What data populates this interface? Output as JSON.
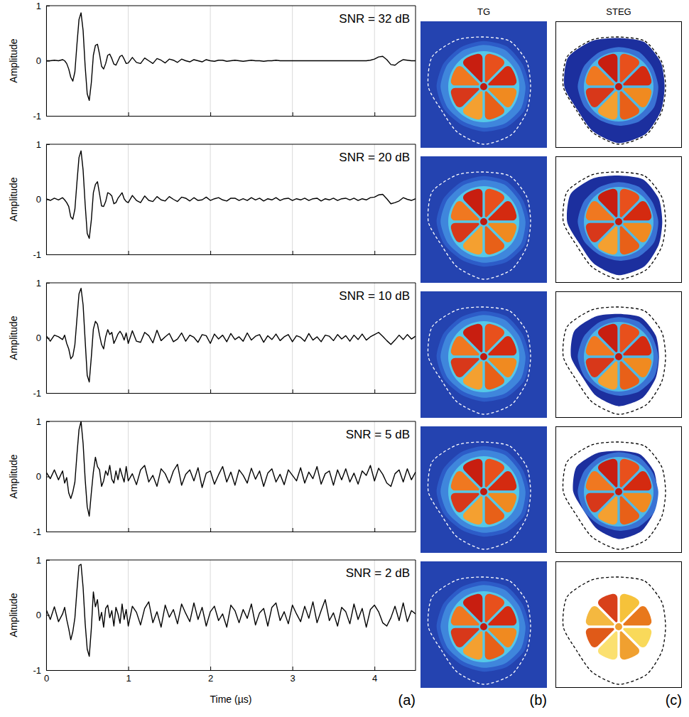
{
  "chart_data": [
    {
      "type": "line",
      "annotation": "SNR = 32 dB",
      "ylabel": "Amplitude",
      "color": "#000000",
      "grid": "x",
      "tick_labels": "y",
      "xlim": [
        0,
        4.5
      ],
      "ylim": [
        -1,
        1
      ],
      "xticks": [
        0,
        1,
        2,
        3,
        4
      ],
      "yticks": [
        -1,
        0,
        1
      ],
      "x": [
        0,
        0.05,
        0.1,
        0.15,
        0.2,
        0.225,
        0.25,
        0.275,
        0.3,
        0.325,
        0.35,
        0.375,
        0.4,
        0.425,
        0.45,
        0.475,
        0.5,
        0.525,
        0.55,
        0.575,
        0.6,
        0.625,
        0.65,
        0.675,
        0.7,
        0.725,
        0.75,
        0.775,
        0.8,
        0.825,
        0.85,
        0.875,
        0.9,
        0.925,
        0.95,
        0.975,
        1,
        1.05,
        1.1,
        1.15,
        1.2,
        1.25,
        1.3,
        1.35,
        1.4,
        1.45,
        1.5,
        1.55,
        1.6,
        1.65,
        1.7,
        1.75,
        1.8,
        1.85,
        1.9,
        1.95,
        2,
        2.05,
        2.1,
        2.15,
        2.2,
        2.25,
        2.3,
        2.35,
        2.4,
        2.45,
        2.5,
        2.55,
        2.6,
        2.65,
        2.7,
        2.75,
        2.8,
        2.85,
        2.9,
        2.95,
        3,
        3.05,
        3.1,
        3.15,
        3.2,
        3.25,
        3.3,
        3.35,
        3.4,
        3.45,
        3.5,
        3.55,
        3.6,
        3.65,
        3.7,
        3.75,
        3.8,
        3.85,
        3.9,
        3.95,
        4,
        4.05,
        4.1,
        4.15,
        4.2,
        4.25,
        4.3,
        4.35,
        4.4,
        4.45,
        4.5
      ],
      "values": [
        0,
        0,
        0.01,
        0,
        0.02,
        0,
        -0.05,
        -0.15,
        -0.3,
        -0.37,
        -0.2,
        0.3,
        0.75,
        0.87,
        0.55,
        -0.1,
        -0.6,
        -0.72,
        -0.4,
        0.1,
        0.28,
        0.3,
        0.12,
        -0.1,
        -0.15,
        -0.05,
        0.1,
        0.12,
        0.04,
        -0.06,
        -0.08,
        0,
        0.08,
        0.1,
        0.03,
        -0.05,
        -0.04,
        0.06,
        -0.03,
        -0.05,
        0.05,
        0,
        -0.05,
        0.04,
        0.01,
        -0.04,
        0.03,
        0.01,
        -0.03,
        0.03,
        0,
        -0.02,
        0.02,
        0,
        -0.02,
        0.02,
        0,
        -0.01,
        0.01,
        0.01,
        -0.01,
        0,
        0.01,
        0,
        -0.01,
        0,
        0.01,
        0,
        0,
        -0.01,
        0,
        0,
        0.01,
        0,
        0,
        0,
        0,
        0,
        0,
        0,
        0,
        0,
        0,
        0,
        0,
        0,
        0,
        0,
        0,
        0,
        0,
        0,
        0,
        0,
        0,
        0.01,
        0.03,
        0.07,
        0.08,
        0.02,
        -0.07,
        -0.08,
        -0.02,
        0.02,
        0.01,
        0,
        0
      ]
    },
    {
      "type": "line",
      "annotation": "SNR = 20 dB",
      "ylabel": "Amplitude",
      "color": "#000000",
      "grid": "x",
      "tick_labels": "y",
      "xlim": [
        0,
        4.5
      ],
      "ylim": [
        -1,
        1
      ],
      "xticks": [
        0,
        1,
        2,
        3,
        4
      ],
      "yticks": [
        -1,
        0,
        1
      ],
      "x": [
        0,
        0.05,
        0.1,
        0.15,
        0.2,
        0.225,
        0.25,
        0.275,
        0.3,
        0.325,
        0.35,
        0.375,
        0.4,
        0.425,
        0.45,
        0.475,
        0.5,
        0.525,
        0.55,
        0.575,
        0.6,
        0.625,
        0.65,
        0.675,
        0.7,
        0.725,
        0.75,
        0.775,
        0.8,
        0.825,
        0.85,
        0.875,
        0.9,
        0.925,
        0.95,
        0.975,
        1,
        1.05,
        1.1,
        1.15,
        1.2,
        1.25,
        1.3,
        1.35,
        1.4,
        1.45,
        1.5,
        1.55,
        1.6,
        1.65,
        1.7,
        1.75,
        1.8,
        1.85,
        1.9,
        1.95,
        2,
        2.05,
        2.1,
        2.15,
        2.2,
        2.25,
        2.3,
        2.35,
        2.4,
        2.45,
        2.5,
        2.55,
        2.6,
        2.65,
        2.7,
        2.75,
        2.8,
        2.85,
        2.9,
        2.95,
        3,
        3.05,
        3.1,
        3.15,
        3.2,
        3.25,
        3.3,
        3.35,
        3.4,
        3.45,
        3.5,
        3.55,
        3.6,
        3.65,
        3.7,
        3.75,
        3.8,
        3.85,
        3.9,
        3.95,
        4,
        4.05,
        4.1,
        4.15,
        4.2,
        4.25,
        4.3,
        4.35,
        4.4,
        4.45,
        4.5
      ],
      "values": [
        0.01,
        -0.02,
        0.02,
        -0.01,
        0.03,
        -0.01,
        -0.06,
        -0.13,
        -0.32,
        -0.36,
        -0.18,
        0.31,
        0.76,
        0.88,
        0.53,
        -0.09,
        -0.62,
        -0.71,
        -0.38,
        0.12,
        0.27,
        0.32,
        0.1,
        -0.12,
        -0.13,
        -0.04,
        0.12,
        0.1,
        0.06,
        -0.08,
        -0.06,
        0.02,
        0.07,
        0.12,
        0.01,
        -0.04,
        -0.06,
        0.07,
        -0.02,
        -0.06,
        0.06,
        -0.02,
        -0.04,
        0.05,
        -0.01,
        -0.03,
        0.05,
        0,
        -0.04,
        0.04,
        0.02,
        -0.03,
        0.03,
        -0.02,
        -0.01,
        0.04,
        -0.02,
        0.01,
        0.03,
        -0.01,
        -0.03,
        0.02,
        0.02,
        -0.02,
        0.01,
        -0.02,
        0.03,
        -0.01,
        0.02,
        -0.03,
        0.01,
        -0.01,
        0.03,
        -0.02,
        0.01,
        0.02,
        -0.02,
        0.01,
        -0.01,
        0.02,
        -0.02,
        0.01,
        0.02,
        -0.03,
        0.01,
        -0.01,
        0.02,
        -0.02,
        0.01,
        0.02,
        -0.01,
        0.02,
        -0.02,
        0.01,
        -0.01,
        0.03,
        0.04,
        0.08,
        0.09,
        0.01,
        -0.08,
        -0.06,
        -0.03,
        0.03,
        0,
        -0.02,
        0.01
      ]
    },
    {
      "type": "line",
      "annotation": "SNR = 10 dB",
      "ylabel": "Amplitude",
      "color": "#000000",
      "grid": "x",
      "tick_labels": "y",
      "xlim": [
        0,
        4.5
      ],
      "ylim": [
        -1,
        1
      ],
      "xticks": [
        0,
        1,
        2,
        3,
        4
      ],
      "yticks": [
        -1,
        0,
        1
      ],
      "x": [
        0,
        0.05,
        0.1,
        0.15,
        0.2,
        0.225,
        0.25,
        0.275,
        0.3,
        0.325,
        0.35,
        0.375,
        0.4,
        0.425,
        0.45,
        0.475,
        0.5,
        0.525,
        0.55,
        0.575,
        0.6,
        0.625,
        0.65,
        0.675,
        0.7,
        0.725,
        0.75,
        0.775,
        0.8,
        0.825,
        0.85,
        0.875,
        0.9,
        0.925,
        0.95,
        0.975,
        1,
        1.05,
        1.1,
        1.15,
        1.2,
        1.25,
        1.3,
        1.35,
        1.4,
        1.45,
        1.5,
        1.55,
        1.6,
        1.65,
        1.7,
        1.75,
        1.8,
        1.85,
        1.9,
        1.95,
        2,
        2.05,
        2.1,
        2.15,
        2.2,
        2.25,
        2.3,
        2.35,
        2.4,
        2.45,
        2.5,
        2.55,
        2.6,
        2.65,
        2.7,
        2.75,
        2.8,
        2.85,
        2.9,
        2.95,
        3,
        3.05,
        3.1,
        3.15,
        3.2,
        3.25,
        3.3,
        3.35,
        3.4,
        3.45,
        3.5,
        3.55,
        3.6,
        3.65,
        3.7,
        3.75,
        3.8,
        3.85,
        3.9,
        3.95,
        4,
        4.05,
        4.1,
        4.15,
        4.2,
        4.25,
        4.3,
        4.35,
        4.4,
        4.45,
        4.5
      ],
      "values": [
        0.04,
        -0.06,
        0.05,
        0.02,
        -0.03,
        0.05,
        -0.1,
        -0.2,
        -0.38,
        -0.33,
        -0.12,
        0.35,
        0.8,
        0.9,
        0.6,
        -0.05,
        -0.68,
        -0.8,
        -0.35,
        0.16,
        0.3,
        0.25,
        0.05,
        -0.12,
        -0.2,
        0.02,
        0.15,
        0.06,
        0.1,
        -0.1,
        -0.02,
        0.07,
        0.12,
        0.06,
        -0.04,
        0.09,
        -0.1,
        0.13,
        -0.06,
        -0.08,
        0.1,
        0.04,
        -0.09,
        0.14,
        -0.05,
        0.02,
        0.08,
        -0.07,
        -0.02,
        0.09,
        -0.06,
        0.05,
        0.01,
        -0.08,
        0.06,
        0.04,
        -0.1,
        0.07,
        -0.02,
        0.05,
        -0.07,
        0.08,
        -0.03,
        0.02,
        -0.06,
        0.09,
        -0.04,
        0.03,
        0.06,
        -0.08,
        0.04,
        -0.03,
        0.07,
        -0.05,
        0.02,
        0.06,
        -0.07,
        0.04,
        0.01,
        -0.06,
        0.08,
        -0.04,
        0.02,
        -0.07,
        0.05,
        0.03,
        -0.05,
        0.06,
        -0.02,
        0.04,
        -0.06,
        0.05,
        -0.03,
        0.07,
        -0.04,
        0.02,
        0.06,
        0.1,
        0.03,
        -0.05,
        -0.12,
        -0.04,
        0.05,
        -0.03,
        0.06,
        -0.02,
        0.03
      ]
    },
    {
      "type": "line",
      "annotation": "SNR = 5 dB",
      "ylabel": "Amplitude",
      "color": "#000000",
      "grid": "x",
      "tick_labels": "y",
      "xlim": [
        0,
        4.5
      ],
      "ylim": [
        -1,
        1
      ],
      "xticks": [
        0,
        1,
        2,
        3,
        4
      ],
      "yticks": [
        -1,
        0,
        1
      ],
      "x": [
        0,
        0.05,
        0.1,
        0.15,
        0.2,
        0.225,
        0.25,
        0.275,
        0.3,
        0.325,
        0.35,
        0.375,
        0.4,
        0.425,
        0.45,
        0.475,
        0.5,
        0.525,
        0.55,
        0.575,
        0.6,
        0.625,
        0.65,
        0.675,
        0.7,
        0.725,
        0.75,
        0.775,
        0.8,
        0.825,
        0.85,
        0.875,
        0.9,
        0.925,
        0.95,
        0.975,
        1,
        1.05,
        1.1,
        1.15,
        1.2,
        1.25,
        1.3,
        1.35,
        1.4,
        1.45,
        1.5,
        1.55,
        1.6,
        1.65,
        1.7,
        1.75,
        1.8,
        1.85,
        1.9,
        1.95,
        2,
        2.05,
        2.1,
        2.15,
        2.2,
        2.25,
        2.3,
        2.35,
        2.4,
        2.45,
        2.5,
        2.55,
        2.6,
        2.65,
        2.7,
        2.75,
        2.8,
        2.85,
        2.9,
        2.95,
        3,
        3.05,
        3.1,
        3.15,
        3.2,
        3.25,
        3.3,
        3.35,
        3.4,
        3.45,
        3.5,
        3.55,
        3.6,
        3.65,
        3.7,
        3.75,
        3.8,
        3.85,
        3.9,
        3.95,
        4,
        4.05,
        4.1,
        4.15,
        4.2,
        4.25,
        4.3,
        4.35,
        4.4,
        4.45,
        4.5
      ],
      "values": [
        0.08,
        -0.04,
        0.12,
        -0.06,
        0.1,
        -0.12,
        -0.02,
        -0.3,
        -0.4,
        -0.28,
        -0.1,
        0.4,
        0.85,
        1,
        0.6,
        -0.05,
        -0.55,
        -0.72,
        -0.3,
        0.08,
        0.35,
        0.18,
        0.12,
        -0.18,
        -0.08,
        0.1,
        0.02,
        0.2,
        -0.05,
        -0.12,
        0.1,
        -0.06,
        0.15,
        0.02,
        -0.1,
        0.18,
        -0.08,
        0.05,
        -0.15,
        0.12,
        0.2,
        -0.1,
        0.02,
        -0.18,
        0.14,
        0.05,
        -0.12,
        0.1,
        0.22,
        -0.16,
        0.04,
        0.12,
        -0.08,
        0.16,
        -0.2,
        0.06,
        0.1,
        -0.14,
        0.03,
        0.18,
        -0.1,
        0.08,
        -0.16,
        0.12,
        0.02,
        -0.12,
        0.15,
        -0.05,
        0.1,
        -0.18,
        0.06,
        0.14,
        -0.1,
        0.04,
        -0.15,
        0.12,
        0.02,
        -0.08,
        0.16,
        -0.12,
        0.08,
        -0.04,
        0.18,
        -0.14,
        0.05,
        0.1,
        -0.16,
        0.12,
        -0.06,
        0.14,
        -0.1,
        0.06,
        -0.14,
        0.1,
        0.02,
        0.2,
        -0.08,
        0.15,
        0.04,
        -0.12,
        -0.18,
        0.05,
        0.12,
        -0.1,
        0.14,
        -0.06,
        0.08
      ]
    },
    {
      "type": "line",
      "annotation": "SNR = 2 dB",
      "ylabel": "Amplitude",
      "xlabel": "Time (µs)",
      "color": "#000000",
      "grid": "x",
      "xlim": [
        0,
        4.5
      ],
      "ylim": [
        -1,
        1
      ],
      "xticks": [
        0,
        1,
        2,
        3,
        4
      ],
      "yticks": [
        -1,
        0,
        1
      ],
      "x": [
        0,
        0.05,
        0.1,
        0.15,
        0.2,
        0.225,
        0.25,
        0.275,
        0.3,
        0.325,
        0.35,
        0.375,
        0.4,
        0.425,
        0.45,
        0.475,
        0.5,
        0.525,
        0.55,
        0.575,
        0.6,
        0.625,
        0.65,
        0.675,
        0.7,
        0.725,
        0.75,
        0.775,
        0.8,
        0.825,
        0.85,
        0.875,
        0.9,
        0.925,
        0.95,
        0.975,
        1,
        1.05,
        1.1,
        1.15,
        1.2,
        1.25,
        1.3,
        1.35,
        1.4,
        1.45,
        1.5,
        1.55,
        1.6,
        1.65,
        1.7,
        1.75,
        1.8,
        1.85,
        1.9,
        1.95,
        2,
        2.05,
        2.1,
        2.15,
        2.2,
        2.25,
        2.3,
        2.35,
        2.4,
        2.45,
        2.5,
        2.55,
        2.6,
        2.65,
        2.7,
        2.75,
        2.8,
        2.85,
        2.9,
        2.95,
        3,
        3.05,
        3.1,
        3.15,
        3.2,
        3.25,
        3.3,
        3.35,
        3.4,
        3.45,
        3.5,
        3.55,
        3.6,
        3.65,
        3.7,
        3.75,
        3.8,
        3.85,
        3.9,
        3.95,
        4,
        4.05,
        4.1,
        4.15,
        4.2,
        4.25,
        4.3,
        4.35,
        4.4,
        4.45,
        4.5
      ],
      "values": [
        0.1,
        -0.08,
        0.15,
        -0.12,
        0.02,
        0.14,
        -0.08,
        -0.25,
        -0.45,
        -0.3,
        -0.05,
        0.45,
        0.9,
        0.92,
        0.5,
        -0.15,
        -0.62,
        -0.75,
        -0.25,
        0.42,
        0.15,
        0.28,
        -0.1,
        0.05,
        -0.22,
        0.12,
        0.18,
        -0.05,
        0.08,
        -0.2,
        0.14,
        0.02,
        -0.15,
        0.2,
        -0.08,
        0.1,
        -0.2,
        0.16,
        0.05,
        -0.18,
        0.12,
        0.24,
        -0.14,
        0.06,
        -0.22,
        0.18,
        -0.04,
        0.1,
        -0.16,
        0.2,
        0.03,
        -0.12,
        0.22,
        -0.08,
        0.14,
        -0.2,
        0.06,
        0.16,
        -0.1,
        0.02,
        -0.22,
        0.18,
        0.08,
        -0.14,
        0.1,
        -0.06,
        0.2,
        -0.18,
        0.04,
        0.12,
        -0.2,
        0.14,
        0.22,
        -0.1,
        0.06,
        -0.16,
        0.18,
        0.02,
        -0.12,
        0.16,
        -0.06,
        0.24,
        -0.14,
        0.08,
        0.28,
        -0.1,
        0.04,
        -0.2,
        0.14,
        0.06,
        -0.16,
        0.2,
        -0.08,
        0.12,
        -0.22,
        0.1,
        0.18,
        0.06,
        -0.14,
        -0.2,
        -0.05,
        0.16,
        -0.1,
        0.22,
        -0.12,
        0.08,
        0.02
      ]
    }
  ],
  "column_titles": [
    "TG",
    "STEG"
  ],
  "panel_labels": [
    "(a)",
    "(b)",
    "(c)"
  ]
}
